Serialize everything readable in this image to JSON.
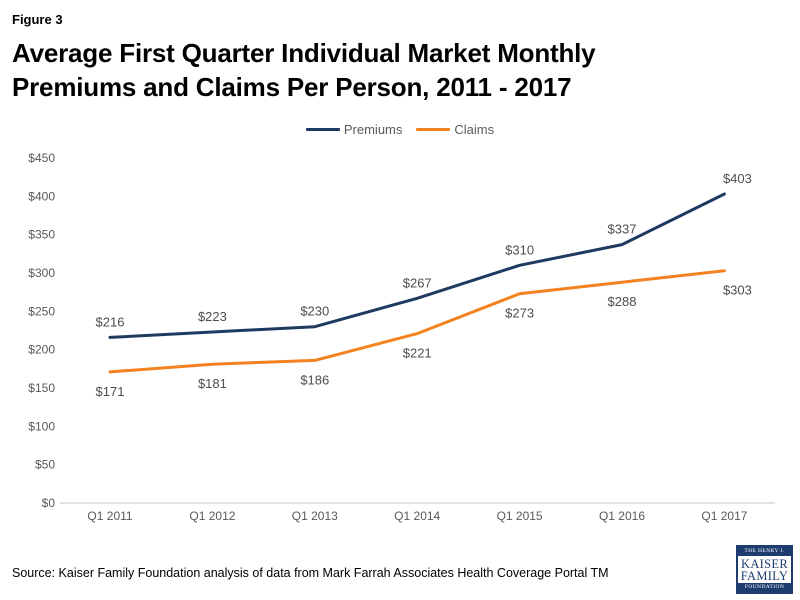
{
  "figure_label": "Figure 3",
  "title": "Average First Quarter Individual Market Monthly Premiums and Claims Per Person, 2011 - 2017",
  "source": "Source: Kaiser Family Foundation analysis of data from Mark Farrah Associates Health Coverage Portal TM",
  "logo": {
    "top": "THE HENRY J.",
    "name_line1": "KAISER",
    "name_line2": "FAMILY",
    "bottom": "FOUNDATION",
    "navy": "#1E3C6E"
  },
  "colors": {
    "premiums": "#1F3A60",
    "claims": "#F58220",
    "axis_line": "#D9D9D9",
    "axis_text": "#595959",
    "data_label_text": "#4D4D4D"
  },
  "chart_data": {
    "type": "line",
    "title": "Average First Quarter Individual Market Monthly Premiums and Claims Per Person, 2011 - 2017",
    "categories": [
      "Q1 2011",
      "Q1 2012",
      "Q1 2013",
      "Q1 2014",
      "Q1 2015",
      "Q1 2016",
      "Q1 2017"
    ],
    "series": [
      {
        "name": "Premiums",
        "color": "#1F3A60",
        "values": [
          216,
          223,
          230,
          267,
          310,
          337,
          403
        ],
        "data_labels": [
          "$216",
          "$223",
          "$230",
          "$267",
          "$310",
          "$337",
          "$403"
        ]
      },
      {
        "name": "Claims",
        "color": "#F58220",
        "values": [
          171,
          181,
          186,
          221,
          273,
          288,
          303
        ],
        "data_labels": [
          "$171",
          "$181",
          "$186",
          "$221",
          "$273",
          "$288",
          "$303"
        ]
      }
    ],
    "xlabel": "",
    "ylabel": "",
    "ylim": [
      0,
      450
    ],
    "y_tick_step": 50,
    "y_tick_labels": [
      "$0",
      "$50",
      "$100",
      "$150",
      "$200",
      "$250",
      "$300",
      "$350",
      "$400",
      "$450"
    ],
    "grid": false,
    "legend_position": "top-center"
  }
}
